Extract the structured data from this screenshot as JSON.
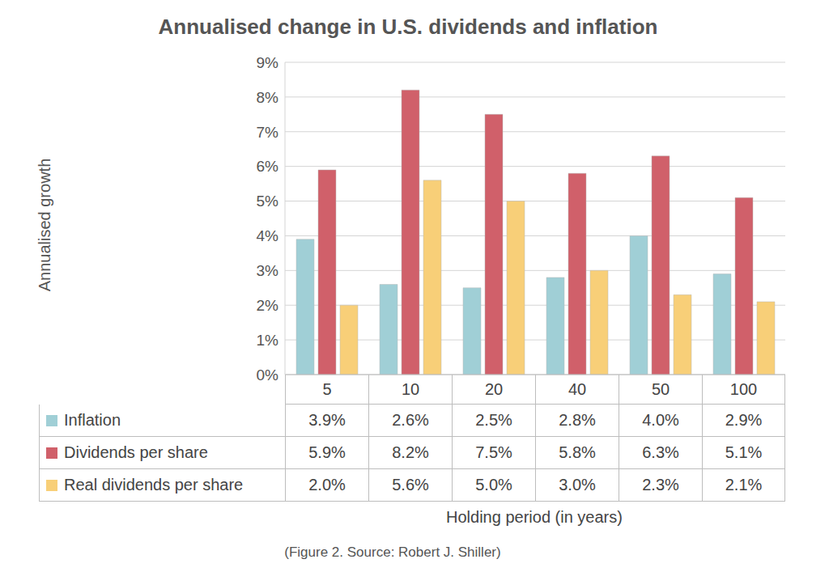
{
  "chart_data": {
    "type": "bar",
    "title": "Annualised change in U.S. dividends and inflation",
    "x_label": "Holding period (in years)",
    "y_label": "Annualised growth",
    "annotations": [
      "(Figure 2. Source: Robert J. Shiller)"
    ],
    "categories": [
      "5",
      "10",
      "20",
      "40",
      "50",
      "100"
    ],
    "series": [
      {
        "name": "Inflation",
        "color": "#a0cfd6",
        "values": [
          3.9,
          2.6,
          2.5,
          2.8,
          4.0,
          2.9
        ],
        "value_labels": [
          "3.9%",
          "2.6%",
          "2.5%",
          "2.8%",
          "4.0%",
          "2.9%"
        ]
      },
      {
        "name": "Dividends per share",
        "color": "#d0606a",
        "values": [
          5.9,
          8.2,
          7.5,
          5.8,
          6.3,
          5.1
        ],
        "value_labels": [
          "5.9%",
          "8.2%",
          "7.5%",
          "5.8%",
          "6.3%",
          "5.1%"
        ]
      },
      {
        "name": "Real dividends per share",
        "color": "#f8cf78",
        "values": [
          2.0,
          5.6,
          5.0,
          3.0,
          2.3,
          2.1
        ],
        "value_labels": [
          "2.0%",
          "5.6%",
          "5.0%",
          "3.0%",
          "2.3%",
          "2.1%"
        ]
      }
    ],
    "ylim": [
      0,
      9
    ],
    "yticks": [
      {
        "value": 0,
        "label": "0%"
      },
      {
        "value": 1,
        "label": "1%"
      },
      {
        "value": 2,
        "label": "2%"
      },
      {
        "value": 3,
        "label": "3%"
      },
      {
        "value": 4,
        "label": "4%"
      },
      {
        "value": 5,
        "label": "5%"
      },
      {
        "value": 6,
        "label": "6%"
      },
      {
        "value": 7,
        "label": "7%"
      },
      {
        "value": 8,
        "label": "8%"
      },
      {
        "value": 9,
        "label": "9%"
      }
    ],
    "grid": true
  }
}
